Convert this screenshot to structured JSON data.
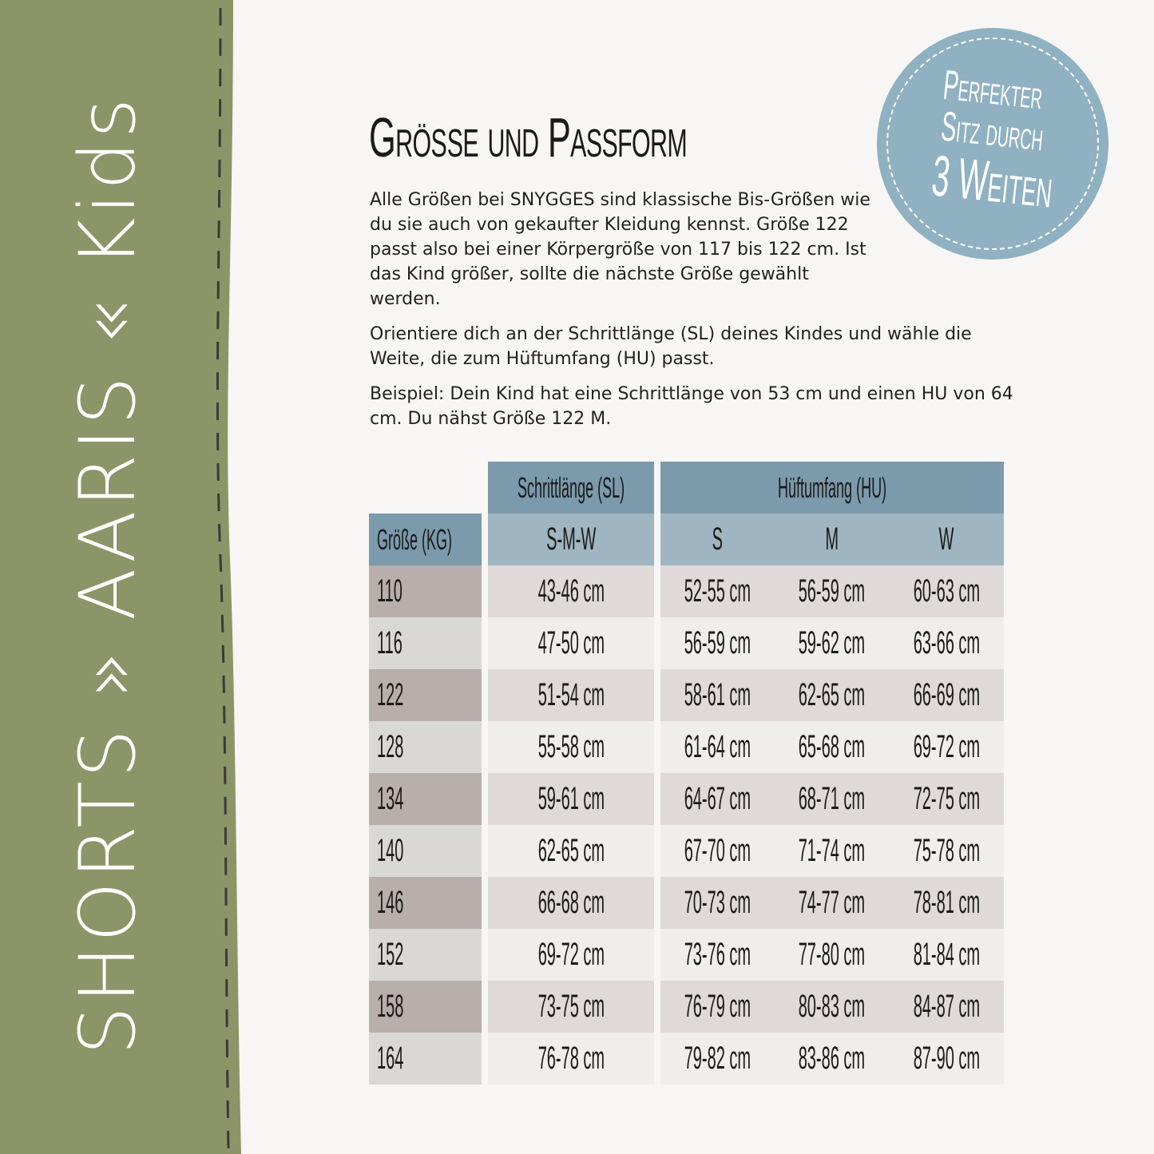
{
  "sidebar": {
    "text": "SHORTS » AARIS « Kids",
    "color": "#8c9567"
  },
  "title": "Größe und Passform",
  "paragraphs": [
    "Alle Größen bei SNYGGES sind klassische Bis-Größen wie du sie auch von gekaufter Kleidung kennst. Größe 122 passt also bei einer Körpergröße von 117 bis 122 cm. Ist das Kind größer, sollte die nächste Größe gewählt werden.",
    "Orientiere dich an der Schrittlänge (SL) deines Kindes und wähle die Weite, die zum Hüftumfang (HU) passt.",
    "Beispiel: Dein Kind hat eine Schrittlänge von 53 cm und einen HU von 64 cm. Du nähst Größe 122 M."
  ],
  "badge": {
    "line1": "Perfekter",
    "line2": "Sitz durch",
    "line3": "3 Weiten",
    "color": "#8fb1c2"
  },
  "table": {
    "header_sl": "Schrittlänge (SL)",
    "header_hu": "Hüftumfang (HU)",
    "col_size": "Größe (KG)",
    "col_sl": "S-M-W",
    "col_s": "S",
    "col_m": "M",
    "col_w": "W",
    "rows": [
      {
        "size": "110",
        "sl": "43-46 cm",
        "s": "52-55 cm",
        "m": "56-59 cm",
        "w": "60-63 cm"
      },
      {
        "size": "116",
        "sl": "47-50 cm",
        "s": "56-59 cm",
        "m": "59-62 cm",
        "w": "63-66 cm"
      },
      {
        "size": "122",
        "sl": "51-54 cm",
        "s": "58-61 cm",
        "m": "62-65 cm",
        "w": "66-69 cm"
      },
      {
        "size": "128",
        "sl": "55-58 cm",
        "s": "61-64 cm",
        "m": "65-68 cm",
        "w": "69-72 cm"
      },
      {
        "size": "134",
        "sl": "59-61 cm",
        "s": "64-67 cm",
        "m": "68-71 cm",
        "w": "72-75 cm"
      },
      {
        "size": "140",
        "sl": "62-65 cm",
        "s": "67-70 cm",
        "m": "71-74 cm",
        "w": "75-78 cm"
      },
      {
        "size": "146",
        "sl": "66-68 cm",
        "s": "70-73 cm",
        "m": "74-77 cm",
        "w": "78-81 cm"
      },
      {
        "size": "152",
        "sl": "69-72 cm",
        "s": "73-76 cm",
        "m": "77-80 cm",
        "w": "81-84 cm"
      },
      {
        "size": "158",
        "sl": "73-75 cm",
        "s": "76-79 cm",
        "m": "80-83 cm",
        "w": "84-87 cm"
      },
      {
        "size": "164",
        "sl": "76-78 cm",
        "s": "79-82 cm",
        "m": "83-86 cm",
        "w": "87-90 cm"
      }
    ]
  }
}
